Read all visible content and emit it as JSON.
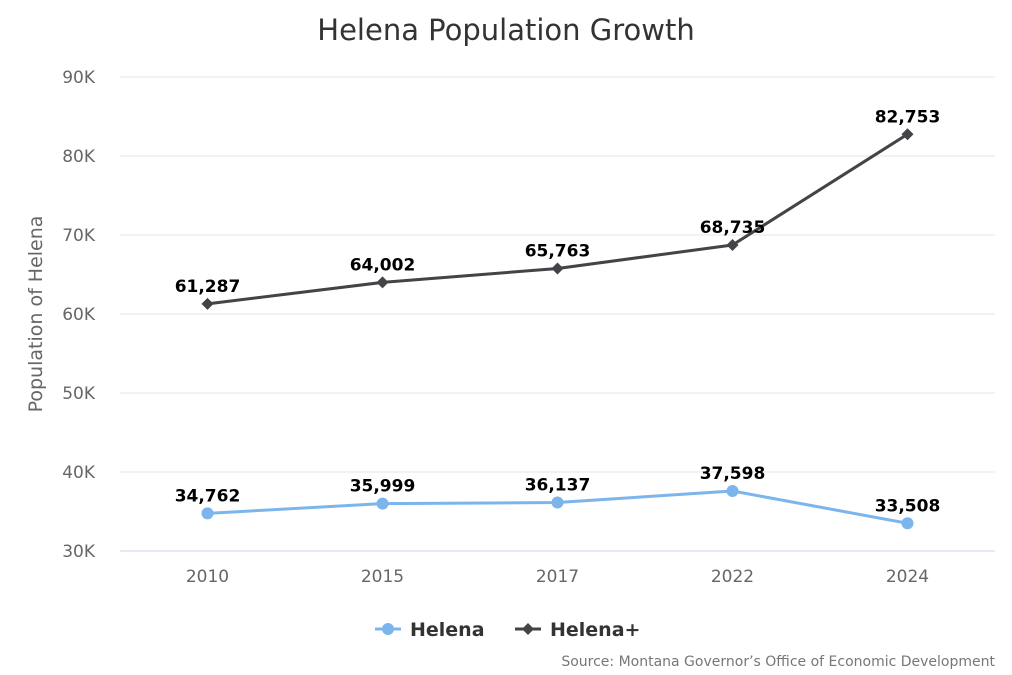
{
  "chart_data": {
    "type": "line",
    "title": "Helena Population Growth",
    "xlabel": "",
    "ylabel": "Population of Helena",
    "categories": [
      "2010",
      "2015",
      "2017",
      "2022",
      "2024"
    ],
    "ylim": [
      30000,
      90000
    ],
    "yticks": [
      30000,
      40000,
      50000,
      60000,
      70000,
      80000,
      90000
    ],
    "ytick_labels": [
      "30K",
      "40K",
      "50K",
      "60K",
      "70K",
      "80K",
      "90K"
    ],
    "grid": true,
    "legend_position": "bottom-center",
    "series": [
      {
        "name": "Helena",
        "values": [
          34762,
          35999,
          36137,
          37598,
          33508
        ],
        "labels": [
          "34,762",
          "35,999",
          "36,137",
          "37,598",
          "33,508"
        ],
        "color": "#7cb5ec",
        "marker": "circle"
      },
      {
        "name": "Helena+",
        "values": [
          61287,
          64002,
          65763,
          68735,
          82753
        ],
        "labels": [
          "61,287",
          "64,002",
          "65,763",
          "68,735",
          "82,753"
        ],
        "color": "#434348",
        "marker": "diamond"
      }
    ],
    "source": "Source: Montana Governor’s Office of Economic Development"
  }
}
